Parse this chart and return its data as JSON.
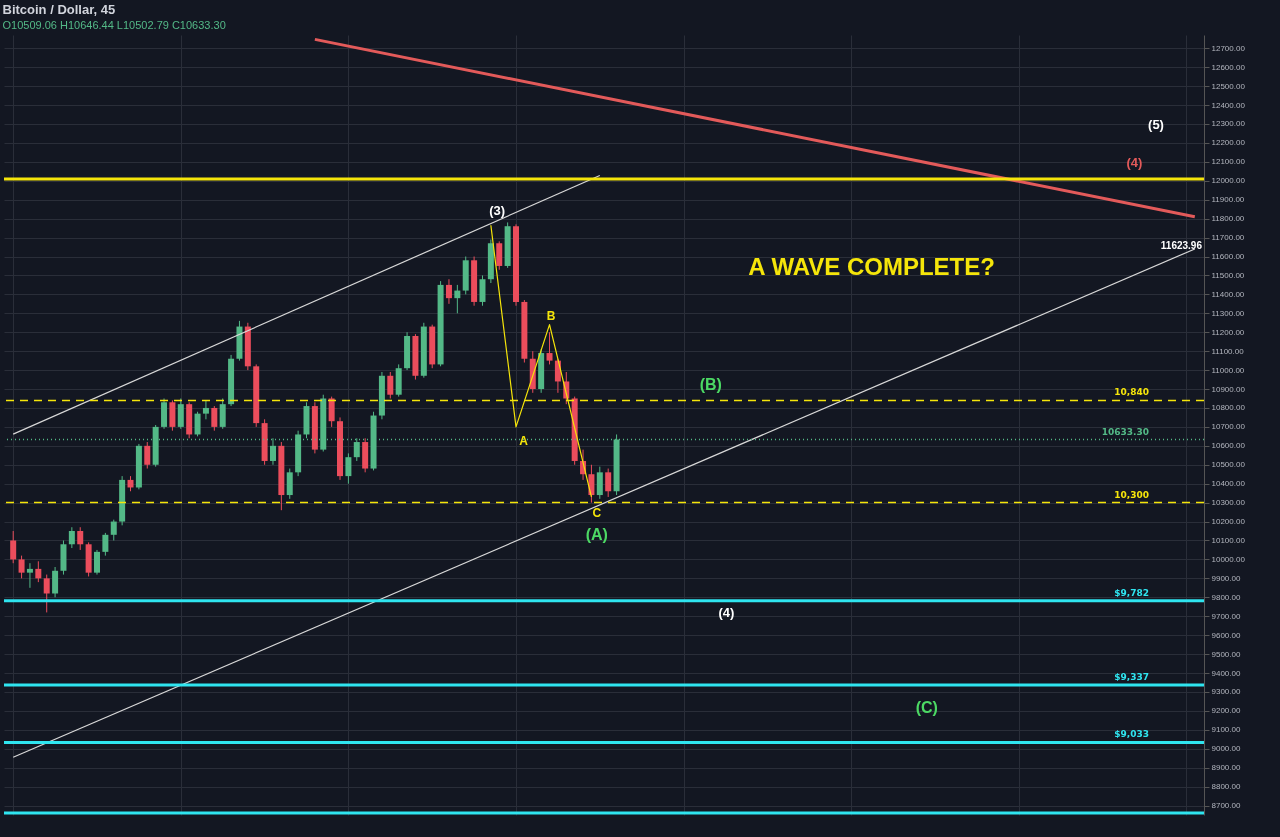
{
  "chart_data": {
    "type": "candlestick",
    "title": "Bitcoin / Dollar, 45",
    "subtitle": "O10509.06 H10646.44 L10502.79 C10633.30",
    "categories": [
      null,
      null,
      null,
      null,
      null,
      null,
      null,
      null,
      null,
      null,
      null,
      null,
      null,
      null,
      null,
      null,
      null,
      null,
      null,
      null,
      null,
      null,
      null,
      null,
      null,
      null,
      null,
      null,
      null,
      null,
      null,
      null,
      null,
      null,
      null,
      null,
      null,
      null,
      null,
      null,
      null,
      null,
      null,
      null,
      null,
      null,
      null,
      null,
      null,
      null,
      null,
      null,
      null,
      null,
      null,
      null,
      null,
      null,
      null,
      null,
      null,
      null,
      null,
      null,
      null,
      null,
      null,
      null,
      null,
      null,
      null,
      null,
      null,
      null,
      null,
      null,
      null,
      null,
      null,
      null,
      null,
      null,
      null,
      null,
      null,
      null,
      null,
      null,
      null,
      null,
      null,
      null,
      null,
      null,
      null,
      null,
      null,
      null,
      null,
      null,
      null,
      null,
      null,
      null,
      null,
      null,
      null,
      null,
      null,
      null,
      null,
      null,
      null,
      null,
      null,
      null,
      null,
      null,
      null,
      null,
      null,
      null,
      null,
      null,
      null,
      null,
      null,
      null,
      null,
      null,
      null,
      null,
      null,
      null,
      null,
      null,
      null,
      null,
      null,
      null,
      null,
      null
    ],
    "ohlc": [
      [
        10100,
        10150,
        9980,
        10000
      ],
      [
        10000,
        10020,
        9900,
        9930
      ],
      [
        9930,
        9980,
        9850,
        9950
      ],
      [
        9950,
        9990,
        9880,
        9900
      ],
      [
        9900,
        9920,
        9720,
        9820
      ],
      [
        9820,
        9960,
        9800,
        9940
      ],
      [
        9940,
        10100,
        9920,
        10080
      ],
      [
        10080,
        10170,
        10060,
        10150
      ],
      [
        10150,
        10170,
        10050,
        10080
      ],
      [
        10080,
        10090,
        9910,
        9930
      ],
      [
        9930,
        10050,
        9920,
        10040
      ],
      [
        10040,
        10140,
        10020,
        10130
      ],
      [
        10130,
        10210,
        10100,
        10200
      ],
      [
        10200,
        10440,
        10180,
        10420
      ],
      [
        10420,
        10440,
        10360,
        10380
      ],
      [
        10380,
        10610,
        10370,
        10600
      ],
      [
        10600,
        10620,
        10480,
        10500
      ],
      [
        10500,
        10710,
        10490,
        10700
      ],
      [
        10700,
        10850,
        10690,
        10830
      ],
      [
        10830,
        10840,
        10680,
        10700
      ],
      [
        10700,
        10850,
        10690,
        10820
      ],
      [
        10820,
        10830,
        10640,
        10660
      ],
      [
        10660,
        10780,
        10650,
        10770
      ],
      [
        10770,
        10840,
        10740,
        10800
      ],
      [
        10800,
        10810,
        10680,
        10700
      ],
      [
        10700,
        10850,
        10690,
        10820
      ],
      [
        10820,
        11080,
        10810,
        11060
      ],
      [
        11060,
        11260,
        11050,
        11230
      ],
      [
        11230,
        11250,
        11000,
        11020
      ],
      [
        11020,
        11030,
        10700,
        10720
      ],
      [
        10720,
        10740,
        10500,
        10520
      ],
      [
        10520,
        10640,
        10500,
        10600
      ],
      [
        10600,
        10620,
        10260,
        10340
      ],
      [
        10340,
        10480,
        10320,
        10460
      ],
      [
        10460,
        10680,
        10440,
        10660
      ],
      [
        10660,
        10830,
        10640,
        10810
      ],
      [
        10810,
        10830,
        10560,
        10580
      ],
      [
        10580,
        10870,
        10570,
        10850
      ],
      [
        10850,
        10860,
        10700,
        10730
      ],
      [
        10730,
        10750,
        10420,
        10440
      ],
      [
        10440,
        10560,
        10400,
        10540
      ],
      [
        10540,
        10640,
        10520,
        10620
      ],
      [
        10620,
        10640,
        10460,
        10480
      ],
      [
        10480,
        10780,
        10470,
        10760
      ],
      [
        10760,
        10990,
        10740,
        10970
      ],
      [
        10970,
        10990,
        10850,
        10870
      ],
      [
        10870,
        11030,
        10860,
        11010
      ],
      [
        11010,
        11200,
        11000,
        11180
      ],
      [
        11180,
        11190,
        10950,
        10970
      ],
      [
        10970,
        11250,
        10960,
        11230
      ],
      [
        11230,
        11240,
        11010,
        11030
      ],
      [
        11030,
        11470,
        11020,
        11450
      ],
      [
        11450,
        11480,
        11350,
        11380
      ],
      [
        11380,
        11450,
        11300,
        11420
      ],
      [
        11420,
        11600,
        11400,
        11580
      ],
      [
        11580,
        11600,
        11340,
        11360
      ],
      [
        11360,
        11500,
        11340,
        11480
      ],
      [
        11480,
        11690,
        11460,
        11670
      ],
      [
        11670,
        11680,
        11530,
        11550
      ],
      [
        11550,
        11780,
        11540,
        11760
      ],
      [
        11760,
        11770,
        11340,
        11360
      ],
      [
        11360,
        11370,
        11040,
        11060
      ],
      [
        11060,
        11100,
        10880,
        10900
      ],
      [
        10900,
        11110,
        10880,
        11090
      ],
      [
        11090,
        11200,
        11030,
        11050
      ],
      [
        11050,
        11060,
        10880,
        10940
      ],
      [
        10940,
        10990,
        10820,
        10850
      ],
      [
        10850,
        10860,
        10500,
        10520
      ],
      [
        10520,
        10580,
        10420,
        10450
      ],
      [
        10450,
        10500,
        10300,
        10340
      ],
      [
        10340,
        10490,
        10320,
        10460
      ],
      [
        10460,
        10480,
        10330,
        10360
      ],
      [
        10360,
        10660,
        10340,
        10633.3
      ],
      null,
      null,
      null,
      null,
      null,
      null,
      null,
      null,
      null,
      null,
      null,
      null,
      null,
      null,
      null,
      null,
      null,
      null,
      null,
      null,
      null,
      null,
      null,
      null,
      null,
      null,
      null,
      null,
      null,
      null,
      null,
      null,
      null,
      null,
      null,
      null,
      null,
      null,
      null,
      null,
      null,
      null,
      null,
      null,
      null,
      null,
      null,
      null,
      null,
      null,
      null,
      null,
      null,
      null,
      null,
      null,
      null,
      null,
      null,
      null,
      null,
      null,
      null,
      null,
      null,
      null,
      null,
      null,
      null
    ],
    "series": [
      {
        "type": "line",
        "color": "#e35a5a",
        "values": [
          null,
          null,
          null,
          null,
          null,
          null,
          null,
          null,
          null,
          null,
          null,
          null,
          null,
          null,
          null,
          null,
          null,
          null,
          null,
          null,
          null,
          null,
          null,
          null,
          null,
          null,
          null,
          null,
          null,
          null,
          null,
          null,
          null,
          null,
          null,
          null,
          12747,
          null,
          null,
          null,
          null,
          null,
          null,
          null,
          null,
          null,
          null,
          null,
          null,
          null,
          null,
          null,
          null,
          null,
          null,
          null,
          null,
          null,
          null,
          null,
          null,
          null,
          null,
          null,
          null,
          null,
          null,
          null,
          null,
          null,
          null,
          null,
          null,
          null,
          null,
          null,
          null,
          null,
          null,
          null,
          null,
          null,
          null,
          null,
          null,
          null,
          null,
          null,
          null,
          null,
          null,
          null,
          null,
          null,
          null,
          null,
          null,
          null,
          null,
          null,
          null,
          null,
          null,
          null,
          null,
          null,
          null,
          null,
          null,
          null,
          null,
          null,
          null,
          null,
          null,
          null,
          null,
          null,
          null,
          null,
          null,
          null,
          null,
          null,
          null,
          null,
          null,
          null,
          null,
          null,
          null,
          null,
          null,
          null,
          null,
          null,
          null,
          null,
          null,
          null,
          null,
          11810
        ]
      },
      {
        "type": "line",
        "color": "#d8d8d8",
        "values": [
          10662,
          null,
          null,
          null,
          null,
          null,
          null,
          null,
          null,
          null,
          null,
          null,
          null,
          null,
          null,
          null,
          null,
          null,
          null,
          null,
          null,
          null,
          null,
          null,
          null,
          null,
          null,
          null,
          null,
          null,
          null,
          null,
          null,
          null,
          null,
          null,
          null,
          null,
          null,
          null,
          null,
          null,
          null,
          null,
          null,
          null,
          null,
          null,
          null,
          null,
          null,
          null,
          null,
          null,
          null,
          null,
          null,
          null,
          null,
          null,
          null,
          null,
          null,
          null,
          null,
          null,
          null,
          null,
          null,
          null,
          12028,
          null,
          null,
          null,
          null,
          null,
          null,
          null,
          null,
          null,
          null,
          null,
          null,
          null,
          null,
          null,
          null,
          null,
          null,
          null,
          null,
          null,
          null,
          null,
          null,
          null,
          null,
          null,
          null,
          null,
          null,
          null,
          null,
          null,
          null,
          null,
          null,
          null,
          null,
          null,
          null,
          null,
          null,
          null,
          null,
          null,
          null,
          null,
          null,
          null,
          null,
          null,
          null,
          null,
          null,
          null,
          null,
          null,
          null,
          null,
          null,
          null,
          null,
          null,
          null,
          null,
          null,
          null,
          null,
          null,
          null,
          null
        ]
      },
      {
        "type": "line",
        "color": "#d8d8d8",
        "values": [
          8955,
          null,
          null,
          null,
          null,
          null,
          null,
          null,
          null,
          null,
          null,
          null,
          null,
          null,
          null,
          null,
          null,
          null,
          null,
          null,
          null,
          null,
          null,
          null,
          null,
          null,
          null,
          null,
          null,
          null,
          null,
          null,
          null,
          null,
          null,
          null,
          null,
          null,
          null,
          null,
          null,
          null,
          null,
          null,
          null,
          null,
          null,
          null,
          null,
          null,
          null,
          null,
          null,
          null,
          null,
          null,
          null,
          null,
          null,
          null,
          null,
          null,
          null,
          null,
          null,
          null,
          null,
          null,
          null,
          null,
          null,
          null,
          null,
          null,
          null,
          null,
          null,
          null,
          null,
          null,
          null,
          null,
          null,
          null,
          null,
          null,
          null,
          null,
          null,
          null,
          null,
          null,
          null,
          null,
          null,
          null,
          null,
          null,
          null,
          null,
          null,
          null,
          null,
          null,
          null,
          null,
          null,
          null,
          null,
          null,
          null,
          null,
          null,
          null,
          null,
          null,
          null,
          null,
          null,
          null,
          null,
          null,
          null,
          null,
          null,
          null,
          null,
          null,
          null,
          null,
          null,
          null,
          null,
          null,
          null,
          null,
          null,
          null,
          null,
          null,
          null,
          11640
        ]
      },
      {
        "type": "line",
        "color": "#f5e50a",
        "values": [
          null,
          null,
          null,
          null,
          null,
          null,
          null,
          null,
          null,
          null,
          null,
          null,
          null,
          null,
          null,
          null,
          null,
          null,
          null,
          null,
          null,
          null,
          null,
          null,
          null,
          null,
          null,
          null,
          null,
          null,
          null,
          null,
          null,
          null,
          null,
          null,
          null,
          null,
          null,
          null,
          null,
          null,
          null,
          null,
          null,
          null,
          null,
          null,
          null,
          null,
          null,
          null,
          null,
          null,
          null,
          null,
          null,
          11765,
          null,
          null,
          10700,
          null,
          null,
          null,
          11240,
          null,
          null,
          null,
          null,
          10330,
          null,
          null,
          null,
          null,
          null,
          null,
          null,
          null,
          null,
          null,
          null,
          null,
          null,
          null,
          null,
          null,
          null,
          null,
          null,
          null,
          null,
          null,
          null,
          null,
          null,
          null,
          null,
          null,
          null,
          null,
          null,
          null,
          null,
          null,
          null,
          null,
          null,
          null,
          null,
          null,
          null,
          null,
          null,
          null,
          null,
          null,
          null,
          null,
          null,
          null,
          null,
          null,
          null,
          null,
          null,
          null,
          null,
          null,
          null,
          null,
          null,
          null,
          null,
          null,
          null,
          null,
          null,
          null,
          null,
          null,
          null,
          null
        ]
      }
    ],
    "ref_lines": [
      {
        "axis": "y",
        "value": 12010,
        "color": "#f5e50a",
        "line_style": "solid"
      },
      {
        "axis": "y",
        "value": 10840,
        "label": "10,840",
        "color": "#f5e50a",
        "line_style": "dashed"
      },
      {
        "axis": "y",
        "value": 10300,
        "label": "10,300",
        "color": "#f5e50a",
        "line_style": "dashed"
      },
      {
        "axis": "y",
        "value": 10633.3,
        "label": "10633.30",
        "color": "#53b987",
        "line_style": "dotted"
      },
      {
        "axis": "y",
        "value": 9782,
        "label": "$9,782",
        "color": "#2fe5f0",
        "line_style": "solid"
      },
      {
        "axis": "y",
        "value": 9337,
        "label": "$9,337",
        "color": "#2fe5f0",
        "line_style": "solid"
      },
      {
        "axis": "y",
        "value": 9033,
        "label": "$9,033",
        "color": "#2fe5f0",
        "line_style": "solid"
      },
      {
        "axis": "y",
        "value": 8660,
        "color": "#2fe5f0",
        "line_style": "solid"
      }
    ],
    "annotations": [
      "(3)",
      "A",
      "B",
      "C",
      "(A)",
      "(B)",
      "(4)",
      "(C)",
      "(5)",
      "(4)",
      "A WAVE COMPLETE?",
      "11623.96"
    ],
    "ylim": [
      8650,
      12770
    ],
    "yticks": [
      {
        "value": 8700,
        "label": "8700.00"
      },
      {
        "value": 8800,
        "label": "8800.00"
      },
      {
        "value": 8900,
        "label": "8900.00"
      },
      {
        "value": 9000,
        "label": "9000.00"
      },
      {
        "value": 9100,
        "label": "9100.00"
      },
      {
        "value": 9200,
        "label": "9200.00"
      },
      {
        "value": 9300,
        "label": "9300.00"
      },
      {
        "value": 9400,
        "label": "9400.00"
      },
      {
        "value": 9500,
        "label": "9500.00"
      },
      {
        "value": 9600,
        "label": "9600.00"
      },
      {
        "value": 9700,
        "label": "9700.00"
      },
      {
        "value": 9800,
        "label": "9800.00"
      },
      {
        "value": 9900,
        "label": "9900.00"
      },
      {
        "value": 10000,
        "label": "10000.00"
      },
      {
        "value": 10100,
        "label": "10100.00"
      },
      {
        "value": 10200,
        "label": "10200.00"
      },
      {
        "value": 10300,
        "label": "10300.00"
      },
      {
        "value": 10400,
        "label": "10400.00"
      },
      {
        "value": 10500,
        "label": "10500.00"
      },
      {
        "value": 10600,
        "label": "10600.00"
      },
      {
        "value": 10700,
        "label": "10700.00"
      },
      {
        "value": 10800,
        "label": "10800.00"
      },
      {
        "value": 10900,
        "label": "10900.00"
      },
      {
        "value": 11000,
        "label": "11000.00"
      },
      {
        "value": 11100,
        "label": "11100.00"
      },
      {
        "value": 11200,
        "label": "11200.00"
      },
      {
        "value": 11300,
        "label": "11300.00"
      },
      {
        "value": 11400,
        "label": "11400.00"
      },
      {
        "value": 11500,
        "label": "11500.00"
      },
      {
        "value": 11600,
        "label": "11600.00"
      },
      {
        "value": 11700,
        "label": "11700.00"
      },
      {
        "value": 11800,
        "label": "11800.00"
      },
      {
        "value": 11900,
        "label": "11900.00"
      },
      {
        "value": 12000,
        "label": "12000.00"
      },
      {
        "value": 12100,
        "label": "12100.00"
      },
      {
        "value": 12200,
        "label": "12200.00"
      },
      {
        "value": 12300,
        "label": "12300.00"
      },
      {
        "value": 12400,
        "label": "12400.00"
      },
      {
        "value": 12500,
        "label": "12500.00"
      },
      {
        "value": 12600,
        "label": "12600.00"
      },
      {
        "value": 12700,
        "label": "12700.00"
      }
    ],
    "tick_labels": "y",
    "grid": true,
    "legend": false
  }
}
